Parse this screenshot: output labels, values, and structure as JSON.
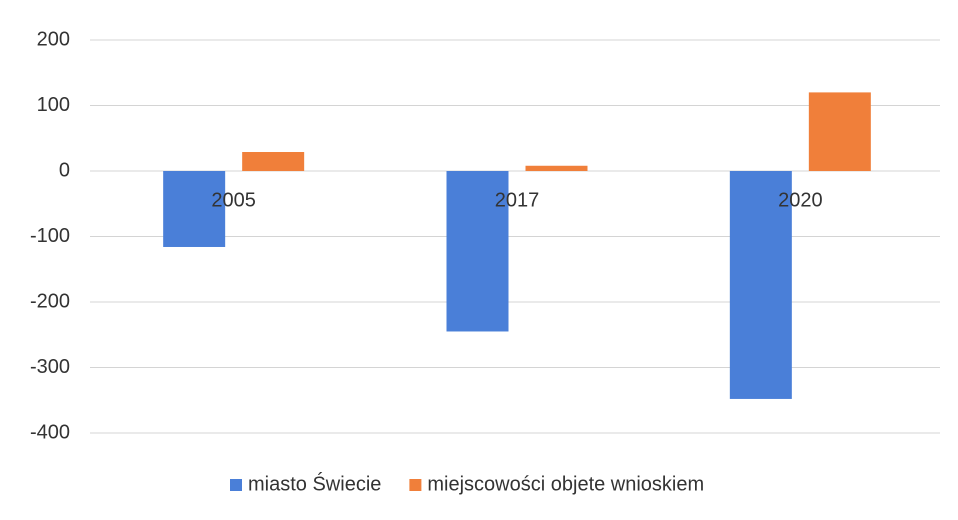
{
  "chart_data": {
    "type": "bar",
    "categories": [
      "2005",
      "2017",
      "2020"
    ],
    "series": [
      {
        "name": "miasto Świecie",
        "color": "#4a7fd8",
        "values": [
          -116,
          -245,
          -348
        ]
      },
      {
        "name": "miejscowości objete wnioskiem",
        "color": "#f07f3a",
        "values": [
          29,
          8,
          120
        ]
      }
    ],
    "ylim": [
      -400,
      200
    ],
    "yticks": [
      -400,
      -300,
      -200,
      -100,
      0,
      100,
      200
    ],
    "grid": true,
    "legend": "bottom"
  }
}
